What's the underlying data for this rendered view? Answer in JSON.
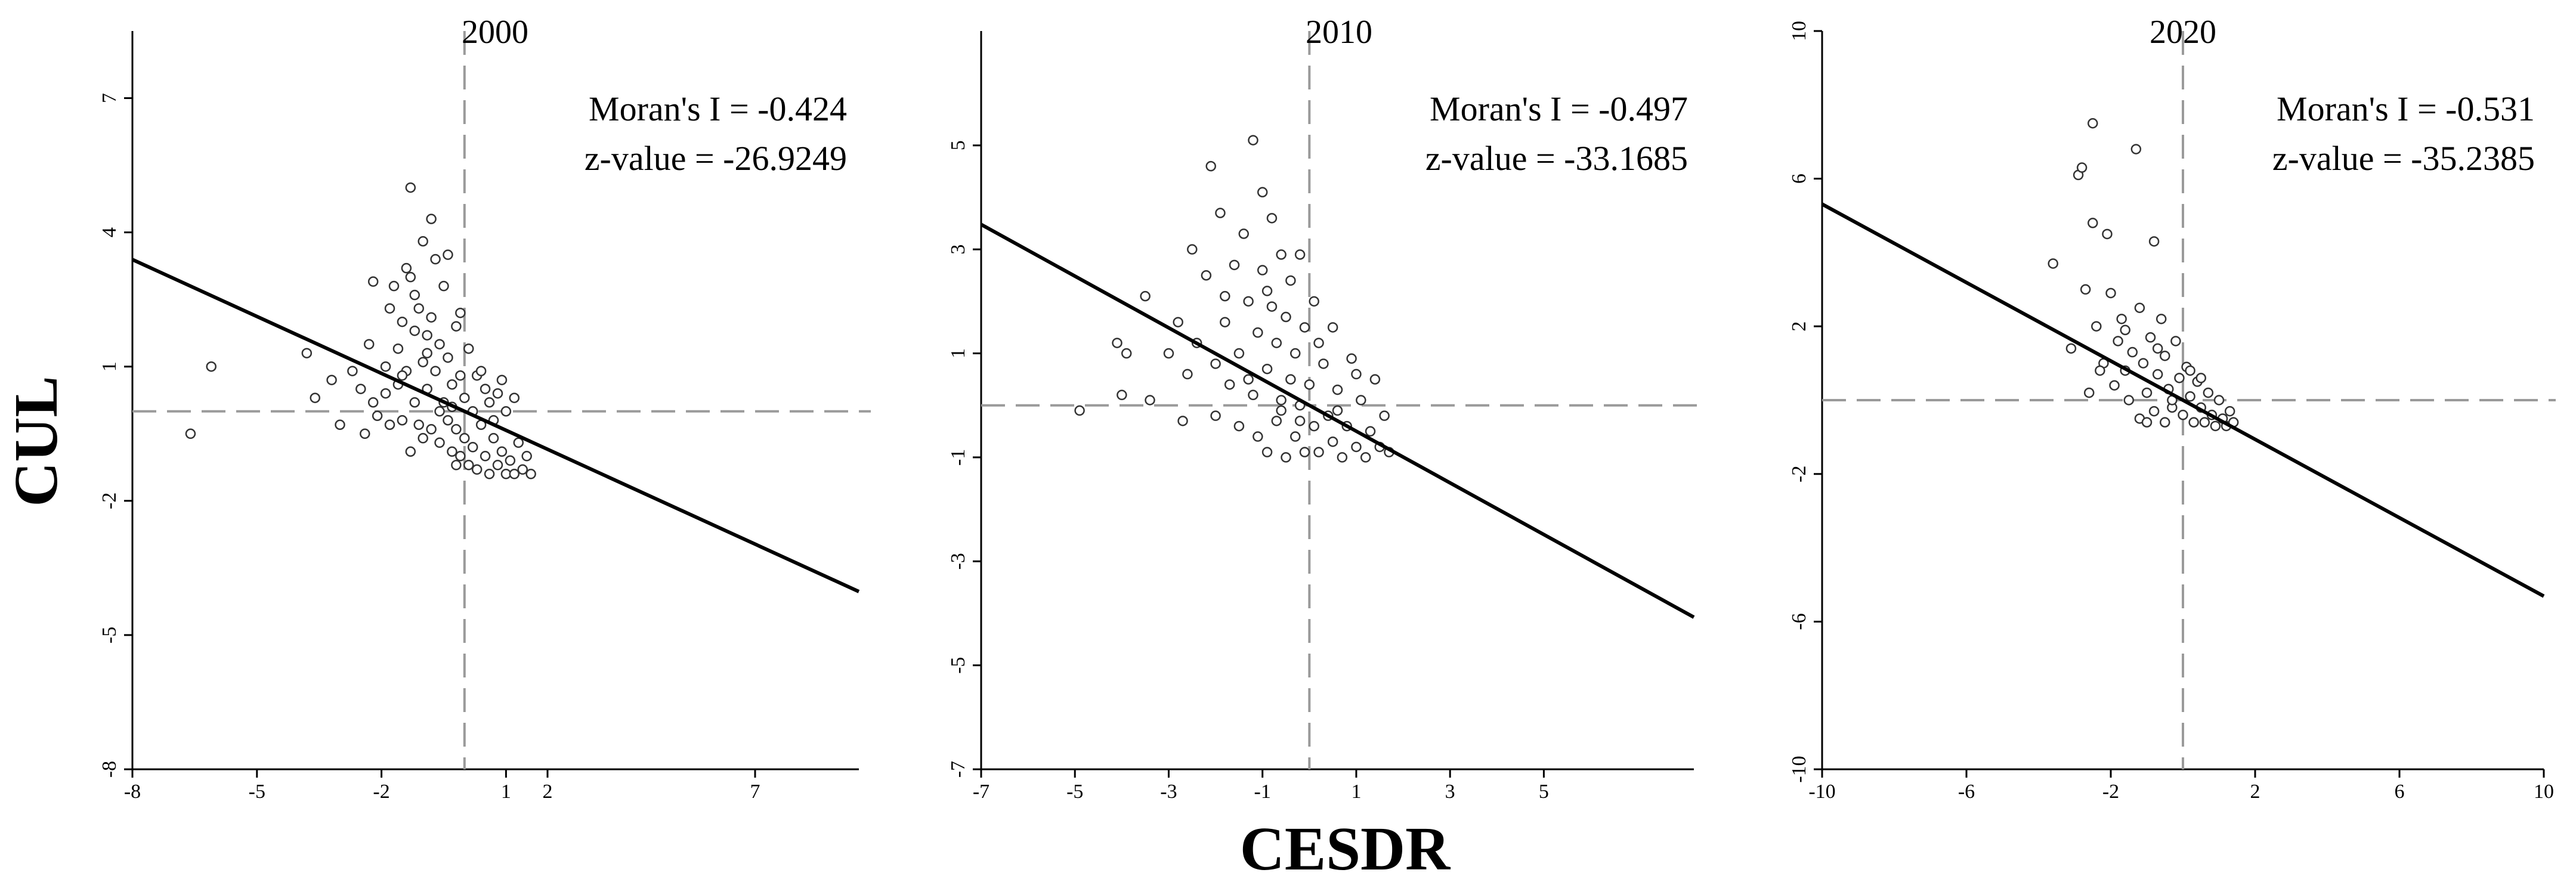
{
  "figure": {
    "xlabel": "CESDR",
    "ylabel": "CUL"
  },
  "chart_data": [
    {
      "type": "scatter",
      "title": "2000",
      "xlabel": "CESDR",
      "ylabel": "CUL",
      "xlim": [
        -8,
        9.5
      ],
      "ylim": [
        -8,
        8.5
      ],
      "xticks": [
        -8,
        -5,
        -2,
        1,
        2,
        7
      ],
      "xtick_labels": [
        "-8",
        "-5",
        "-2",
        "1",
        "2",
        "7"
      ],
      "yticks": [
        7,
        4,
        1,
        -2,
        -5,
        -8
      ],
      "ytick_labels": [
        "7",
        "4",
        "1",
        "-2",
        "-5",
        "-8"
      ],
      "mean_x": 0.0,
      "mean_y": 0.0,
      "regression": {
        "slope": -0.424,
        "intercept": 0,
        "x_range": [
          -8,
          9.5
        ]
      },
      "morans_i": "Moran's  I = -0.424",
      "z_value": "z-value = -26.9249",
      "points": [
        [
          -6.6,
          -0.5
        ],
        [
          -6.1,
          1.0
        ],
        [
          -3.8,
          1.3
        ],
        [
          -3.6,
          0.3
        ],
        [
          -3.2,
          0.7
        ],
        [
          -3.0,
          -0.3
        ],
        [
          -2.7,
          0.9
        ],
        [
          -2.5,
          0.5
        ],
        [
          -2.4,
          -0.5
        ],
        [
          -2.3,
          1.5
        ],
        [
          -2.2,
          0.2
        ],
        [
          -2.1,
          -0.1
        ],
        [
          -2.2,
          2.9
        ],
        [
          -1.9,
          1.0
        ],
        [
          -1.9,
          0.4
        ],
        [
          -1.8,
          -0.3
        ],
        [
          -1.8,
          2.3
        ],
        [
          -1.7,
          2.8
        ],
        [
          -1.6,
          1.4
        ],
        [
          -1.6,
          0.6
        ],
        [
          -1.5,
          -0.2
        ],
        [
          -1.5,
          2.0
        ],
        [
          -1.4,
          3.2
        ],
        [
          -1.4,
          0.9
        ],
        [
          -1.3,
          -0.9
        ],
        [
          -1.3,
          3.0
        ],
        [
          -1.3,
          5.0
        ],
        [
          -1.2,
          2.6
        ],
        [
          -1.2,
          1.8
        ],
        [
          -1.2,
          0.2
        ],
        [
          -1.1,
          2.3
        ],
        [
          -1.0,
          1.1
        ],
        [
          -1.0,
          -0.6
        ],
        [
          -1.0,
          3.8
        ],
        [
          -0.9,
          1.7
        ],
        [
          -0.9,
          0.5
        ],
        [
          -0.8,
          -0.4
        ],
        [
          -0.8,
          4.3
        ],
        [
          -0.8,
          2.1
        ],
        [
          -0.7,
          0.9
        ],
        [
          -0.7,
          3.4
        ],
        [
          -0.6,
          -0.7
        ],
        [
          -0.6,
          1.5
        ],
        [
          -0.5,
          0.2
        ],
        [
          -0.5,
          2.8
        ],
        [
          -0.4,
          -0.2
        ],
        [
          -0.4,
          1.2
        ],
        [
          -0.4,
          3.5
        ],
        [
          -0.3,
          0.6
        ],
        [
          -0.3,
          -0.9
        ],
        [
          -0.2,
          1.9
        ],
        [
          -0.2,
          -0.4
        ],
        [
          -0.1,
          0.8
        ],
        [
          -0.1,
          -1.0
        ],
        [
          -0.1,
          2.2
        ],
        [
          0.0,
          0.3
        ],
        [
          0.0,
          -0.6
        ],
        [
          0.1,
          1.4
        ],
        [
          0.1,
          -1.2
        ],
        [
          0.2,
          0.0
        ],
        [
          0.2,
          -0.8
        ],
        [
          0.3,
          0.8
        ],
        [
          0.3,
          -1.3
        ],
        [
          0.4,
          -0.3
        ],
        [
          0.5,
          0.5
        ],
        [
          0.5,
          -1.0
        ],
        [
          0.6,
          -1.4
        ],
        [
          0.6,
          0.2
        ],
        [
          0.7,
          -0.6
        ],
        [
          0.8,
          -1.2
        ],
        [
          0.8,
          0.4
        ],
        [
          0.9,
          -0.9
        ],
        [
          1.0,
          -1.4
        ],
        [
          1.0,
          0.0
        ],
        [
          1.1,
          -1.1
        ],
        [
          1.2,
          -1.4
        ],
        [
          1.3,
          -0.7
        ],
        [
          1.4,
          -1.3
        ],
        [
          1.5,
          -1.0
        ],
        [
          1.6,
          -1.4
        ],
        [
          1.2,
          0.3
        ],
        [
          0.9,
          0.7
        ],
        [
          -0.6,
          0.0
        ],
        [
          -1.1,
          -0.3
        ],
        [
          -0.3,
          0.1
        ],
        [
          0.4,
          0.9
        ],
        [
          -0.9,
          1.3
        ],
        [
          -1.5,
          0.8
        ],
        [
          -0.2,
          -1.2
        ],
        [
          0.7,
          -0.2
        ]
      ]
    },
    {
      "type": "scatter",
      "title": "2010",
      "xlabel": "CESDR",
      "ylabel": "CUL",
      "xlim": [
        -7,
        8.2
      ],
      "ylim": [
        -7,
        7.2
      ],
      "xticks": [
        -7,
        -5,
        -3,
        -1,
        1,
        3,
        5
      ],
      "xtick_labels": [
        "-7",
        "-5",
        "-3",
        "-1",
        "1",
        "3",
        "5"
      ],
      "yticks": [
        5,
        3,
        1,
        -1,
        -3,
        -5,
        -7
      ],
      "ytick_labels": [
        "5",
        "3",
        "1",
        "-1",
        "-3",
        "-5",
        "-7"
      ],
      "mean_x": 0.0,
      "mean_y": 0.0,
      "regression": {
        "slope": -0.497,
        "intercept": 0,
        "x_range": [
          -7,
          8.2
        ]
      },
      "morans_i": "Moran's  I = -0.497",
      "z_value": "z-value = -33.1685",
      "points": [
        [
          -4.9,
          -0.1
        ],
        [
          -4.1,
          1.2
        ],
        [
          -4.0,
          0.2
        ],
        [
          -3.9,
          1.0
        ],
        [
          -3.5,
          2.1
        ],
        [
          -3.4,
          0.1
        ],
        [
          -3.0,
          1.0
        ],
        [
          -2.8,
          1.6
        ],
        [
          -2.7,
          -0.3
        ],
        [
          -2.6,
          0.6
        ],
        [
          -2.5,
          3.0
        ],
        [
          -2.4,
          1.2
        ],
        [
          -2.2,
          2.5
        ],
        [
          -2.1,
          4.6
        ],
        [
          -2.0,
          0.8
        ],
        [
          -2.0,
          -0.2
        ],
        [
          -1.9,
          3.7
        ],
        [
          -1.8,
          1.6
        ],
        [
          -1.7,
          0.4
        ],
        [
          -1.6,
          2.7
        ],
        [
          -1.5,
          1.0
        ],
        [
          -1.5,
          -0.4
        ],
        [
          -1.4,
          3.3
        ],
        [
          -1.3,
          2.0
        ],
        [
          -1.2,
          0.2
        ],
        [
          -1.2,
          5.1
        ],
        [
          -1.1,
          1.4
        ],
        [
          -1.1,
          -0.6
        ],
        [
          -1.0,
          2.6
        ],
        [
          -1.0,
          4.1
        ],
        [
          -0.9,
          0.7
        ],
        [
          -0.9,
          -0.9
        ],
        [
          -0.8,
          1.9
        ],
        [
          -0.8,
          3.6
        ],
        [
          -0.7,
          -0.3
        ],
        [
          -0.7,
          1.2
        ],
        [
          -0.6,
          2.9
        ],
        [
          -0.6,
          0.1
        ],
        [
          -0.5,
          -1.0
        ],
        [
          -0.5,
          1.7
        ],
        [
          -0.4,
          0.5
        ],
        [
          -0.4,
          2.4
        ],
        [
          -0.3,
          -0.6
        ],
        [
          -0.3,
          1.0
        ],
        [
          -0.2,
          0.0
        ],
        [
          -0.2,
          2.9
        ],
        [
          -0.1,
          -0.9
        ],
        [
          -0.1,
          1.5
        ],
        [
          0.0,
          0.4
        ],
        [
          0.1,
          -0.4
        ],
        [
          0.1,
          2.0
        ],
        [
          0.2,
          -0.9
        ],
        [
          0.3,
          0.8
        ],
        [
          0.4,
          -0.2
        ],
        [
          0.5,
          -0.7
        ],
        [
          0.5,
          1.5
        ],
        [
          0.6,
          0.3
        ],
        [
          0.7,
          -1.0
        ],
        [
          0.8,
          -0.4
        ],
        [
          0.9,
          0.9
        ],
        [
          1.0,
          -0.8
        ],
        [
          1.1,
          0.1
        ],
        [
          1.2,
          -1.0
        ],
        [
          1.3,
          -0.5
        ],
        [
          1.4,
          0.5
        ],
        [
          1.5,
          -0.8
        ],
        [
          1.6,
          -0.2
        ],
        [
          1.7,
          -0.9
        ],
        [
          -1.3,
          0.5
        ],
        [
          -0.6,
          -0.1
        ],
        [
          0.2,
          1.2
        ],
        [
          -1.8,
          2.1
        ],
        [
          -0.9,
          2.2
        ],
        [
          0.6,
          -0.1
        ],
        [
          -0.2,
          -0.3
        ],
        [
          1.0,
          0.6
        ]
      ]
    },
    {
      "type": "scatter",
      "title": "2020",
      "xlabel": "CESDR",
      "ylabel": "CUL",
      "xlim": [
        -10,
        10
      ],
      "ylim": [
        -10,
        10
      ],
      "xticks": [
        -10,
        -6,
        -2,
        2,
        6,
        10
      ],
      "xtick_labels": [
        "-10",
        "-6",
        "-2",
        "2",
        "6",
        "10"
      ],
      "yticks": [
        10,
        6,
        2,
        -2,
        -6,
        -10
      ],
      "ytick_labels": [
        "10",
        "6",
        "2",
        "-2",
        "-6",
        "-10"
      ],
      "mean_x": 0.0,
      "mean_y": 0.0,
      "regression": {
        "slope": -0.531,
        "intercept": 0,
        "x_range": [
          -10,
          10
        ]
      },
      "morans_i": "Moran's  I = -0.531",
      "z_value": "z-value = -35.2385",
      "points": [
        [
          -3.6,
          3.7
        ],
        [
          -3.1,
          1.4
        ],
        [
          -2.9,
          6.1
        ],
        [
          -2.8,
          6.3
        ],
        [
          -2.7,
          3.0
        ],
        [
          -2.6,
          0.2
        ],
        [
          -2.5,
          7.5
        ],
        [
          -2.5,
          4.8
        ],
        [
          -2.4,
          2.0
        ],
        [
          -2.2,
          1.0
        ],
        [
          -2.1,
          4.5
        ],
        [
          -2.0,
          2.9
        ],
        [
          -1.9,
          0.4
        ],
        [
          -1.8,
          1.6
        ],
        [
          -1.7,
          2.2
        ],
        [
          -1.6,
          0.8
        ],
        [
          -1.5,
          0.0
        ],
        [
          -1.4,
          1.3
        ],
        [
          -1.3,
          6.8
        ],
        [
          -1.2,
          2.5
        ],
        [
          -1.2,
          -0.5
        ],
        [
          -1.1,
          1.0
        ],
        [
          -1.0,
          0.2
        ],
        [
          -0.9,
          1.7
        ],
        [
          -0.8,
          4.3
        ],
        [
          -0.8,
          -0.3
        ],
        [
          -0.7,
          0.7
        ],
        [
          -0.6,
          2.2
        ],
        [
          -0.5,
          -0.6
        ],
        [
          -0.5,
          1.2
        ],
        [
          -0.4,
          0.3
        ],
        [
          -0.3,
          -0.2
        ],
        [
          -0.2,
          1.6
        ],
        [
          -0.1,
          0.6
        ],
        [
          0.0,
          -0.4
        ],
        [
          0.1,
          0.9
        ],
        [
          0.2,
          0.1
        ],
        [
          0.3,
          -0.6
        ],
        [
          0.4,
          0.5
        ],
        [
          0.5,
          -0.2
        ],
        [
          0.6,
          -0.6
        ],
        [
          0.7,
          0.2
        ],
        [
          0.8,
          -0.4
        ],
        [
          0.9,
          -0.7
        ],
        [
          1.0,
          0.0
        ],
        [
          1.1,
          -0.5
        ],
        [
          1.2,
          -0.7
        ],
        [
          1.3,
          -0.3
        ],
        [
          1.4,
          -0.6
        ],
        [
          -1.6,
          1.9
        ],
        [
          -0.7,
          1.4
        ],
        [
          0.2,
          0.8
        ],
        [
          -1.0,
          -0.6
        ],
        [
          -2.3,
          0.8
        ],
        [
          0.5,
          0.6
        ],
        [
          -0.3,
          0.0
        ]
      ]
    }
  ]
}
